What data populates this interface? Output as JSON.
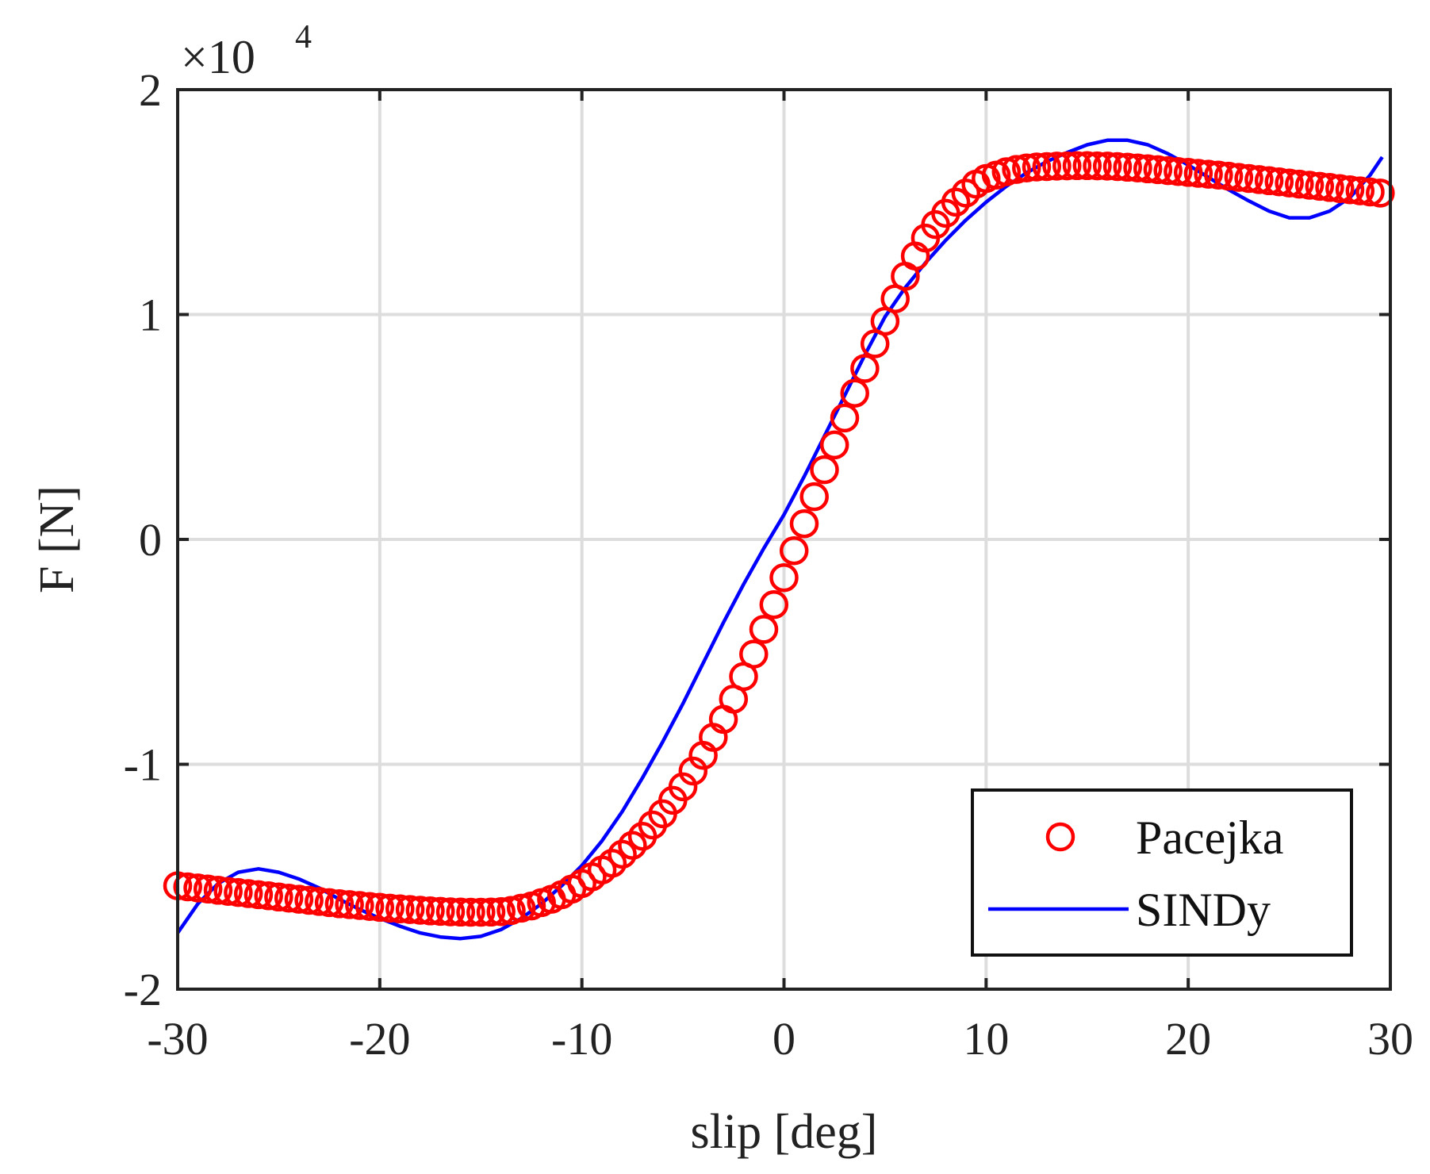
{
  "chart_data": {
    "type": "line",
    "title": "",
    "xlabel": "slip [deg]",
    "ylabel": "F [N]",
    "xlim": [
      -30,
      30
    ],
    "ylim": [
      -2,
      2
    ],
    "y_exponent_label": "×10",
    "y_exponent_power": "4",
    "xticks": [
      -30,
      -20,
      -10,
      0,
      10,
      20,
      30
    ],
    "xtick_labels": [
      "-30",
      "-20",
      "-10",
      "0",
      "10",
      "20",
      "30"
    ],
    "yticks": [
      -2,
      -1,
      0,
      1,
      2
    ],
    "ytick_labels": [
      "-2",
      "-1",
      "0",
      "1",
      "2"
    ],
    "grid": true,
    "legend_position": "bottom-right",
    "series": [
      {
        "name": "Pacejka",
        "style": "markers",
        "marker": "circle",
        "color": "#ff0000",
        "x_start": -30,
        "x_step": 0.5,
        "values": [
          -1.54,
          -1.545,
          -1.55,
          -1.555,
          -1.56,
          -1.565,
          -1.57,
          -1.575,
          -1.58,
          -1.585,
          -1.59,
          -1.595,
          -1.6,
          -1.605,
          -1.61,
          -1.615,
          -1.62,
          -1.624,
          -1.628,
          -1.632,
          -1.636,
          -1.64,
          -1.643,
          -1.646,
          -1.649,
          -1.652,
          -1.654,
          -1.656,
          -1.657,
          -1.658,
          -1.658,
          -1.657,
          -1.655,
          -1.65,
          -1.64,
          -1.63,
          -1.615,
          -1.6,
          -1.58,
          -1.555,
          -1.53,
          -1.5,
          -1.47,
          -1.44,
          -1.4,
          -1.36,
          -1.32,
          -1.27,
          -1.22,
          -1.16,
          -1.1,
          -1.03,
          -0.96,
          -0.88,
          -0.8,
          -0.71,
          -0.61,
          -0.51,
          -0.4,
          -0.29,
          -0.17,
          -0.05,
          0.07,
          0.19,
          0.31,
          0.42,
          0.54,
          0.65,
          0.76,
          0.87,
          0.97,
          1.07,
          1.17,
          1.26,
          1.34,
          1.4,
          1.45,
          1.5,
          1.54,
          1.58,
          1.605,
          1.62,
          1.635,
          1.645,
          1.652,
          1.656,
          1.658,
          1.66,
          1.661,
          1.662,
          1.662,
          1.661,
          1.66,
          1.658,
          1.655,
          1.652,
          1.648,
          1.644,
          1.64,
          1.636,
          1.632,
          1.628,
          1.624,
          1.62,
          1.615,
          1.61,
          1.605,
          1.6,
          1.595,
          1.59,
          1.585,
          1.58,
          1.575,
          1.57,
          1.565,
          1.56,
          1.555,
          1.55,
          1.545,
          1.54
        ]
      },
      {
        "name": "SINDy",
        "style": "line",
        "color": "#0000ff",
        "x": [
          -30,
          -29,
          -28,
          -27,
          -26,
          -25,
          -24,
          -23,
          -22,
          -21,
          -20,
          -19,
          -18,
          -17,
          -16,
          -15,
          -14,
          -13,
          -12,
          -11,
          -10,
          -9,
          -8,
          -7,
          -6,
          -5,
          -4,
          -3,
          -2,
          -1,
          0,
          1,
          2,
          3,
          4,
          5,
          6,
          7,
          8,
          9,
          10,
          11,
          12,
          13,
          14,
          15,
          16,
          17,
          18,
          19,
          20,
          21,
          22,
          23,
          24,
          25,
          26,
          27,
          28,
          29,
          29.6
        ],
        "values": [
          -1.75,
          -1.62,
          -1.53,
          -1.48,
          -1.465,
          -1.48,
          -1.51,
          -1.55,
          -1.6,
          -1.645,
          -1.685,
          -1.72,
          -1.75,
          -1.768,
          -1.775,
          -1.765,
          -1.735,
          -1.685,
          -1.62,
          -1.54,
          -1.45,
          -1.34,
          -1.21,
          -1.06,
          -0.9,
          -0.73,
          -0.55,
          -0.37,
          -0.2,
          -0.04,
          0.11,
          0.28,
          0.46,
          0.64,
          0.82,
          0.99,
          1.12,
          1.23,
          1.33,
          1.42,
          1.5,
          1.57,
          1.63,
          1.68,
          1.72,
          1.755,
          1.775,
          1.775,
          1.755,
          1.715,
          1.665,
          1.61,
          1.555,
          1.505,
          1.46,
          1.43,
          1.43,
          1.46,
          1.52,
          1.62,
          1.7
        ]
      }
    ]
  },
  "legend": {
    "items": [
      "Pacejka",
      "SINDy"
    ]
  }
}
